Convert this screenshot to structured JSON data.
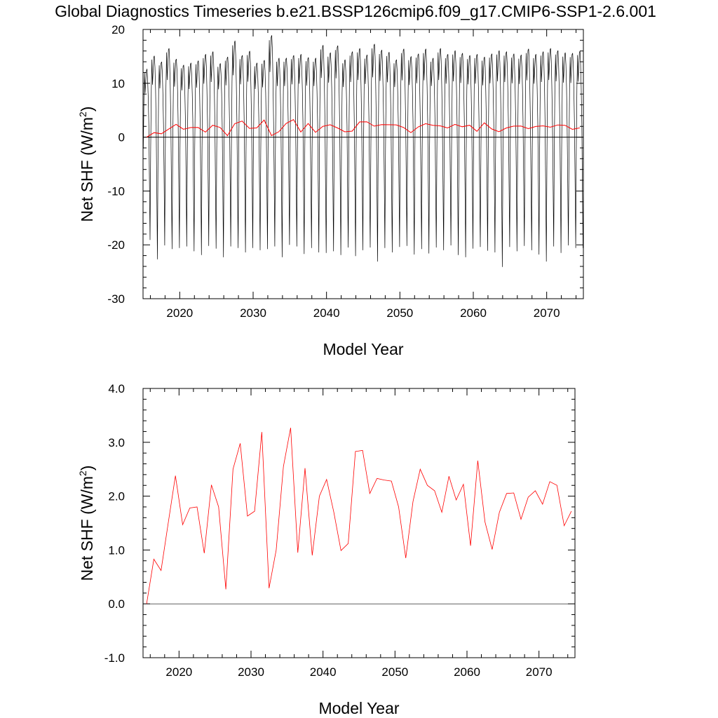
{
  "title": "Global Diagnostics Timeseries b.e21.BSSP126cmip6.f09_g17.CMIP6-SSP1-2.6.001",
  "chart_data": [
    {
      "type": "line",
      "xlabel": "Model Year",
      "ylabel_main": "Net SHF (W/m",
      "ylabel_sup": "2",
      "ylabel_close": ")",
      "xlim": [
        2015,
        2075
      ],
      "ylim": [
        -30,
        20
      ],
      "xticks": [
        2020,
        2030,
        2040,
        2050,
        2060,
        2070
      ],
      "yticks": [
        -30,
        -20,
        -10,
        0,
        10,
        20
      ],
      "ytick_labels": [
        "-30",
        "-20",
        "-10",
        "0",
        "10",
        "20"
      ],
      "zero_line": 0,
      "series": [
        {
          "kind": "monthly",
          "color": "#000000",
          "x_start": 2015.04,
          "x_step": 0.08333,
          "seasonal_max": [
            12.6,
            15.1,
            14.0,
            16.5,
            14.5,
            13.4,
            13.8,
            14.2,
            15.4,
            15.9,
            13.7,
            14.9,
            17.9,
            15.2,
            16.0,
            13.8,
            14.3,
            18.9,
            14.7,
            14.7,
            15.2,
            15.4,
            14.8,
            14.7,
            17.1,
            15.7,
            17.0,
            14.4,
            15.9,
            16.5,
            15.3,
            17.3,
            16.2,
            15.8,
            14.4,
            16.4,
            15.0,
            15.5,
            16.4,
            14.7,
            16.5,
            15.4,
            16.1,
            15.6,
            15.2,
            15.4,
            14.9,
            15.5,
            16.1,
            15.9,
            15.5,
            15.3,
            16.4,
            15.4,
            15.9,
            16.5,
            16.1,
            15.7,
            15.6,
            16.0
          ],
          "seasonal_min": [
            -19.8,
            -19.1,
            -22.7,
            -20.1,
            -20.8,
            -20.6,
            -20.3,
            -21.2,
            -21.9,
            -20.2,
            -20.7,
            -22.3,
            -20.3,
            -20.6,
            -21.4,
            -20.6,
            -21.0,
            -20.8,
            -20.3,
            -22.3,
            -20.0,
            -20.3,
            -21.7,
            -20.6,
            -21.4,
            -21.5,
            -21.2,
            -21.9,
            -20.5,
            -22.1,
            -21.0,
            -20.5,
            -23.1,
            -20.6,
            -21.4,
            -20.4,
            -20.2,
            -21.8,
            -20.8,
            -21.6,
            -20.5,
            -21.0,
            -20.1,
            -21.9,
            -22.3,
            -20.7,
            -20.4,
            -21.1,
            -21.4,
            -24.1,
            -20.4,
            -21.2,
            -20.2,
            -21.0,
            -21.8,
            -23.1,
            -20.3,
            -21.5,
            -20.1,
            -20.6
          ]
        },
        {
          "kind": "annual",
          "color": "#ff0000",
          "x": [
            2015.5,
            2016.5,
            2017.5,
            2018.5,
            2019.5,
            2020.5,
            2021.5,
            2022.5,
            2023.5,
            2024.5,
            2025.5,
            2026.5,
            2027.5,
            2028.5,
            2029.5,
            2030.5,
            2031.5,
            2032.5,
            2033.5,
            2034.5,
            2035.5,
            2036.5,
            2037.5,
            2038.5,
            2039.5,
            2040.5,
            2041.5,
            2042.5,
            2043.5,
            2044.5,
            2045.5,
            2046.5,
            2047.5,
            2048.5,
            2049.5,
            2050.5,
            2051.5,
            2052.5,
            2053.5,
            2054.5,
            2055.5,
            2056.5,
            2057.5,
            2058.5,
            2059.5,
            2060.5,
            2061.5,
            2062.5,
            2063.5,
            2064.5,
            2065.5,
            2066.5,
            2067.5,
            2068.5,
            2069.5,
            2070.5,
            2071.5,
            2072.5,
            2073.5,
            2074.5
          ],
          "values": [
            0.0,
            0.83,
            0.62,
            1.5,
            2.38,
            1.47,
            1.78,
            1.8,
            0.94,
            2.21,
            1.8,
            0.27,
            2.5,
            2.98,
            1.63,
            1.72,
            3.19,
            0.29,
            1.0,
            2.55,
            3.27,
            0.95,
            2.52,
            0.9,
            2.0,
            2.31,
            1.7,
            0.99,
            1.12,
            2.83,
            2.85,
            2.05,
            2.33,
            2.3,
            2.28,
            1.8,
            0.85,
            1.9,
            2.5,
            2.2,
            2.1,
            1.7,
            2.37,
            1.93,
            2.22,
            1.08,
            2.66,
            1.52,
            1.01,
            1.7,
            2.05,
            2.06,
            1.57,
            1.98,
            2.1,
            1.85,
            2.27,
            2.2,
            1.45,
            1.72
          ]
        }
      ]
    },
    {
      "type": "line",
      "xlabel": "Model Year",
      "ylabel_main": "Net SHF (W/m",
      "ylabel_sup": "2",
      "ylabel_close": ")",
      "xlim": [
        2015,
        2075
      ],
      "ylim": [
        -1.0,
        4.0
      ],
      "xticks": [
        2020,
        2030,
        2040,
        2050,
        2060,
        2070
      ],
      "yticks": [
        -1,
        0,
        1,
        2,
        3,
        4
      ],
      "ytick_labels": [
        "-1.0",
        "0.0",
        "1.0",
        "2.0",
        "3.0",
        "4.0"
      ],
      "zero_line": 0,
      "series": [
        {
          "kind": "annual",
          "color": "#ff0000",
          "x": [
            2015.5,
            2016.5,
            2017.5,
            2018.5,
            2019.5,
            2020.5,
            2021.5,
            2022.5,
            2023.5,
            2024.5,
            2025.5,
            2026.5,
            2027.5,
            2028.5,
            2029.5,
            2030.5,
            2031.5,
            2032.5,
            2033.5,
            2034.5,
            2035.5,
            2036.5,
            2037.5,
            2038.5,
            2039.5,
            2040.5,
            2041.5,
            2042.5,
            2043.5,
            2044.5,
            2045.5,
            2046.5,
            2047.5,
            2048.5,
            2049.5,
            2050.5,
            2051.5,
            2052.5,
            2053.5,
            2054.5,
            2055.5,
            2056.5,
            2057.5,
            2058.5,
            2059.5,
            2060.5,
            2061.5,
            2062.5,
            2063.5,
            2064.5,
            2065.5,
            2066.5,
            2067.5,
            2068.5,
            2069.5,
            2070.5,
            2071.5,
            2072.5,
            2073.5,
            2074.5
          ],
          "values": [
            0.0,
            0.83,
            0.62,
            1.5,
            2.38,
            1.47,
            1.78,
            1.8,
            0.94,
            2.21,
            1.8,
            0.27,
            2.5,
            2.98,
            1.63,
            1.72,
            3.19,
            0.29,
            1.0,
            2.55,
            3.27,
            0.95,
            2.52,
            0.9,
            2.0,
            2.31,
            1.7,
            0.99,
            1.12,
            2.83,
            2.85,
            2.05,
            2.33,
            2.3,
            2.28,
            1.8,
            0.85,
            1.9,
            2.5,
            2.2,
            2.1,
            1.7,
            2.37,
            1.93,
            2.22,
            1.08,
            2.66,
            1.52,
            1.01,
            1.7,
            2.05,
            2.06,
            1.57,
            1.98,
            2.1,
            1.85,
            2.27,
            2.2,
            1.45,
            1.72
          ]
        }
      ]
    }
  ]
}
